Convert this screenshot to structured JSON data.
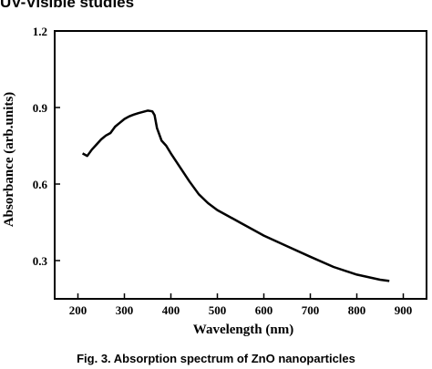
{
  "heading": "UV-Visible studies",
  "caption": "Fig. 3. Absorption spectrum of ZnO nanoparticles",
  "chart_data": {
    "type": "line",
    "xlabel": "Wavelength (nm)",
    "ylabel": "Absorbance (arb.units)",
    "xlim": [
      150,
      950
    ],
    "ylim": [
      0.15,
      1.2
    ],
    "xticks": [
      200,
      300,
      400,
      500,
      600,
      700,
      800,
      900
    ],
    "yticks": [
      0.3,
      0.6,
      0.9,
      1.2
    ],
    "xtick_labels": [
      "200",
      "300",
      "400",
      "500",
      "600",
      "700",
      "800",
      "900"
    ],
    "ytick_labels": [
      "0.3",
      "0.6",
      "0.9",
      "1.2"
    ],
    "grid": false,
    "line_color": "#000000",
    "series": [
      {
        "x": [
          210,
          220,
          230,
          240,
          250,
          260,
          270,
          280,
          290,
          300,
          310,
          320,
          330,
          340,
          350,
          360,
          365,
          370,
          380,
          390,
          400,
          420,
          440,
          460,
          480,
          500,
          550,
          600,
          650,
          700,
          750,
          800,
          850,
          870
        ],
        "y": [
          0.72,
          0.71,
          0.735,
          0.755,
          0.775,
          0.79,
          0.8,
          0.825,
          0.84,
          0.855,
          0.865,
          0.872,
          0.878,
          0.883,
          0.888,
          0.885,
          0.87,
          0.82,
          0.77,
          0.75,
          0.72,
          0.665,
          0.61,
          0.56,
          0.525,
          0.498,
          0.448,
          0.398,
          0.356,
          0.315,
          0.275,
          0.245,
          0.225,
          0.22
        ]
      }
    ]
  }
}
